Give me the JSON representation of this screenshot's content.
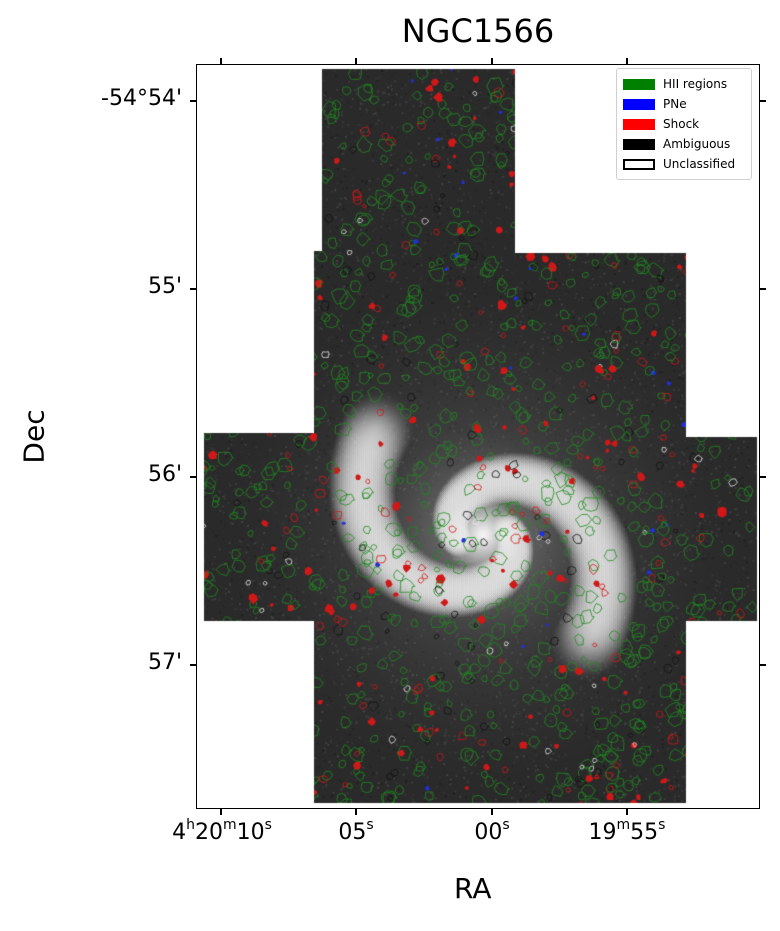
{
  "title": "NGC1566",
  "axes": {
    "xlabel": "RA",
    "ylabel": "Dec",
    "y_ticks": [
      "-54°54'",
      "55'",
      "56'",
      "57'"
    ]
  },
  "x_ticks": [
    {
      "h": "4",
      "hu": "h",
      "m": "20",
      "mu": "m",
      "s": "10",
      "su": "s"
    },
    {
      "h": "",
      "hu": "",
      "m": "",
      "mu": "",
      "s": "05",
      "su": "s"
    },
    {
      "h": "",
      "hu": "",
      "m": "",
      "mu": "",
      "s": "00",
      "su": "s"
    },
    {
      "h": "",
      "hu": "",
      "m": "19",
      "mu": "m",
      "s": "55",
      "su": "s"
    }
  ],
  "legend": [
    {
      "label": "HII regions",
      "color": "#008000",
      "filled": true
    },
    {
      "label": "PNe",
      "color": "#0000ff",
      "filled": true
    },
    {
      "label": "Shock",
      "color": "#ff0000",
      "filled": true
    },
    {
      "label": "Ambiguous",
      "color": "#000000",
      "filled": true
    },
    {
      "label": "Unclassified",
      "color": "#000000",
      "filled": false
    }
  ],
  "image": {
    "description_colors": {
      "background": "#ffffff",
      "sky": "#2c2c2c",
      "arm": "#d8d8d8",
      "core": "#ffffff"
    }
  }
}
